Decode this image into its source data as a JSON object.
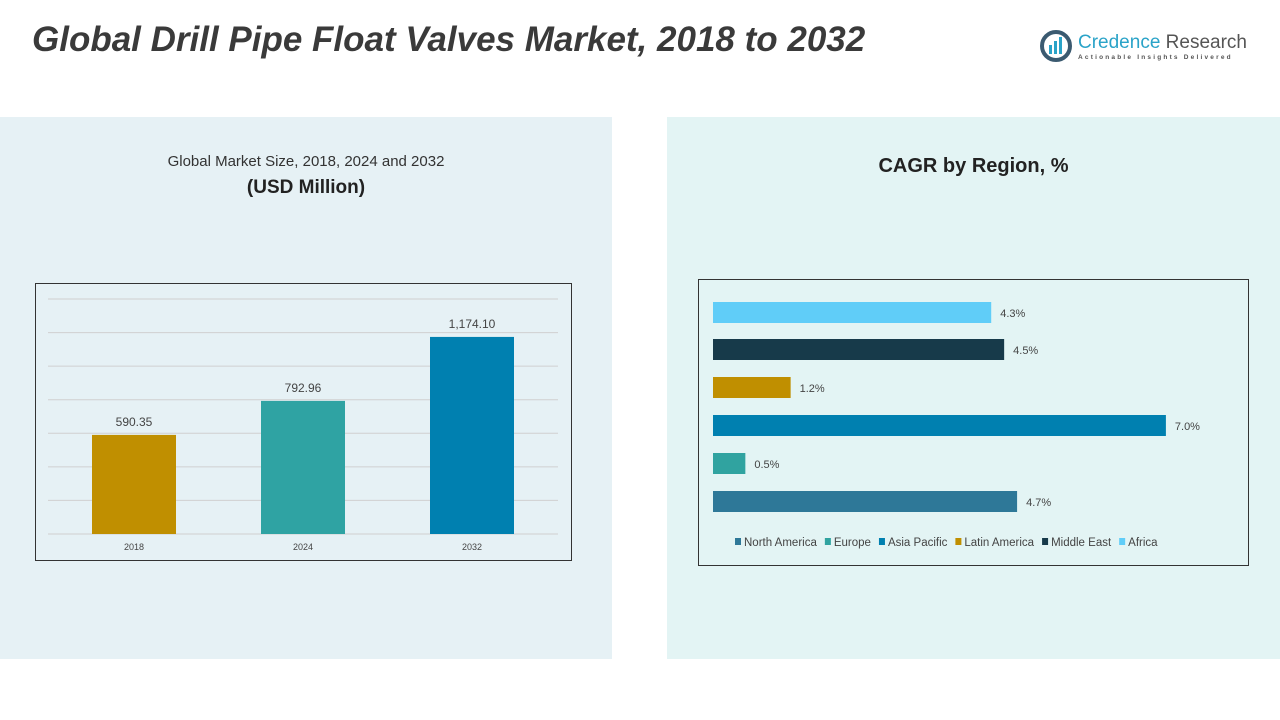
{
  "title": "Global Drill Pipe Float Valves Market, 2018 to 2032",
  "logo": {
    "name_part1": "Credence",
    "name_part2": " Research",
    "tagline": "Actionable Insights Delivered"
  },
  "colors": {
    "gold": "#c08f00",
    "teal": "#2fa3a3",
    "blue": "#0080b0",
    "north_america": "#2e7898",
    "europe": "#30a3a0",
    "asia_pacific": "#0080b0",
    "latin_america": "#c08f00",
    "middle_east": "#173a4a",
    "africa": "#60cdf8"
  },
  "chart_data": [
    {
      "type": "bar",
      "title": "Global Market Size, 2018, 2024 and 2032",
      "subtitle": "(USD Million)",
      "categories": [
        "2018",
        "2024",
        "2032"
      ],
      "values": [
        590.35,
        792.96,
        1174.1
      ],
      "value_labels": [
        "590.35",
        "792.96",
        "1,174.10"
      ],
      "ylim": [
        0,
        1400
      ],
      "grid": true
    },
    {
      "type": "bar",
      "orientation": "horizontal",
      "title": "CAGR by Region, %",
      "categories": [
        "North America",
        "Europe",
        "Asia Pacific",
        "Latin America",
        "Middle East",
        "Africa"
      ],
      "values": [
        4.7,
        0.5,
        7.0,
        1.2,
        4.5,
        4.3
      ],
      "value_labels": [
        "4.7%",
        "0.5%",
        "7.0%",
        "1.2%",
        "4.5%",
        "4.3%"
      ],
      "legend": "bottom"
    }
  ]
}
